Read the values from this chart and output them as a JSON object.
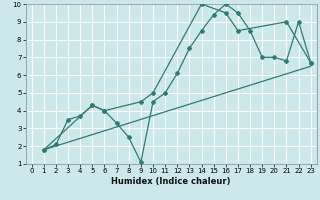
{
  "title": "",
  "xlabel": "Humidex (Indice chaleur)",
  "ylabel": "",
  "bg_color": "#cce8ea",
  "grid_color": "#ffffff",
  "line_color": "#2e7d6e",
  "xlim": [
    -0.5,
    23.5
  ],
  "ylim": [
    1,
    10
  ],
  "xticks": [
    0,
    1,
    2,
    3,
    4,
    5,
    6,
    7,
    8,
    9,
    10,
    11,
    12,
    13,
    14,
    15,
    16,
    17,
    18,
    19,
    20,
    21,
    22,
    23
  ],
  "yticks": [
    1,
    2,
    3,
    4,
    5,
    6,
    7,
    8,
    9,
    10
  ],
  "line1_x": [
    1,
    2,
    3,
    4,
    5,
    6,
    7,
    8,
    9,
    10,
    11,
    12,
    13,
    14,
    15,
    16,
    17,
    18,
    19,
    20,
    21,
    22,
    23
  ],
  "line1_y": [
    1.8,
    2.1,
    3.5,
    3.7,
    4.3,
    4.0,
    3.3,
    2.5,
    1.1,
    4.5,
    5.0,
    6.1,
    7.5,
    8.5,
    9.4,
    10.0,
    9.5,
    8.5,
    7.0,
    7.0,
    6.8,
    9.0,
    6.7
  ],
  "line2_x": [
    1,
    5,
    6,
    9,
    10,
    14,
    16,
    17,
    21,
    23
  ],
  "line2_y": [
    1.8,
    4.3,
    4.0,
    4.5,
    5.0,
    10.0,
    9.5,
    8.5,
    9.0,
    6.7
  ],
  "line3_x": [
    1,
    23
  ],
  "line3_y": [
    1.8,
    6.5
  ],
  "marker": "D",
  "marker_size": 2,
  "linewidth": 0.9
}
